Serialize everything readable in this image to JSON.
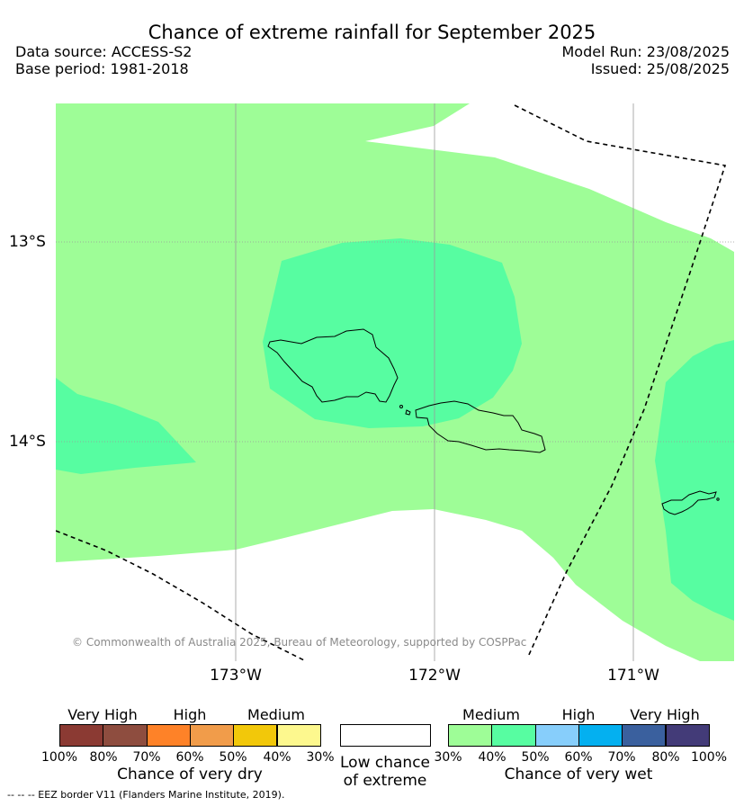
{
  "title": "Chance of extreme rainfall for September 2025",
  "meta": {
    "data_source": "Data source: ACCESS-S2",
    "base_period": "Base period: 1981-2018",
    "model_run": "Model Run: 23/08/2025",
    "issued": "Issued: 25/08/2025"
  },
  "map": {
    "lat_labels": [
      "13°S",
      "14°S"
    ],
    "lon_labels": [
      "173°W",
      "172°W",
      "171°W"
    ],
    "copyright": "© Commonwealth of Australia 2025, Bureau of Meteorology, supported by COSPPac",
    "colors": {
      "wet_30_40": "#9efd97",
      "wet_40_50": "#57fda1",
      "grid": "#999999",
      "eez": "#000000"
    }
  },
  "legend": {
    "dry": {
      "categories": [
        "Very High",
        "High",
        "Medium"
      ],
      "ticks": [
        "100%",
        "80%",
        "70%",
        "60%",
        "50%",
        "40%",
        "30%"
      ],
      "colors": [
        "#8b3a33",
        "#8e4d3f",
        "#fe8228",
        "#f19c4a",
        "#f2c80a",
        "#fdf88e"
      ],
      "title": "Chance of very dry"
    },
    "low": {
      "title_line1": "Low chance",
      "title_line2": "of extreme",
      "color": "#ffffff"
    },
    "wet": {
      "categories": [
        "Medium",
        "High",
        "Very High"
      ],
      "ticks": [
        "30%",
        "40%",
        "50%",
        "60%",
        "70%",
        "80%",
        "100%"
      ],
      "colors": [
        "#9efd97",
        "#57fda1",
        "#87cefb",
        "#04b0f0",
        "#3a609e",
        "#433b78"
      ],
      "title": "Chance of very wet"
    }
  },
  "footnote": "--  --  -- EEZ border V11 (Flanders Marine Institute, 2019)."
}
